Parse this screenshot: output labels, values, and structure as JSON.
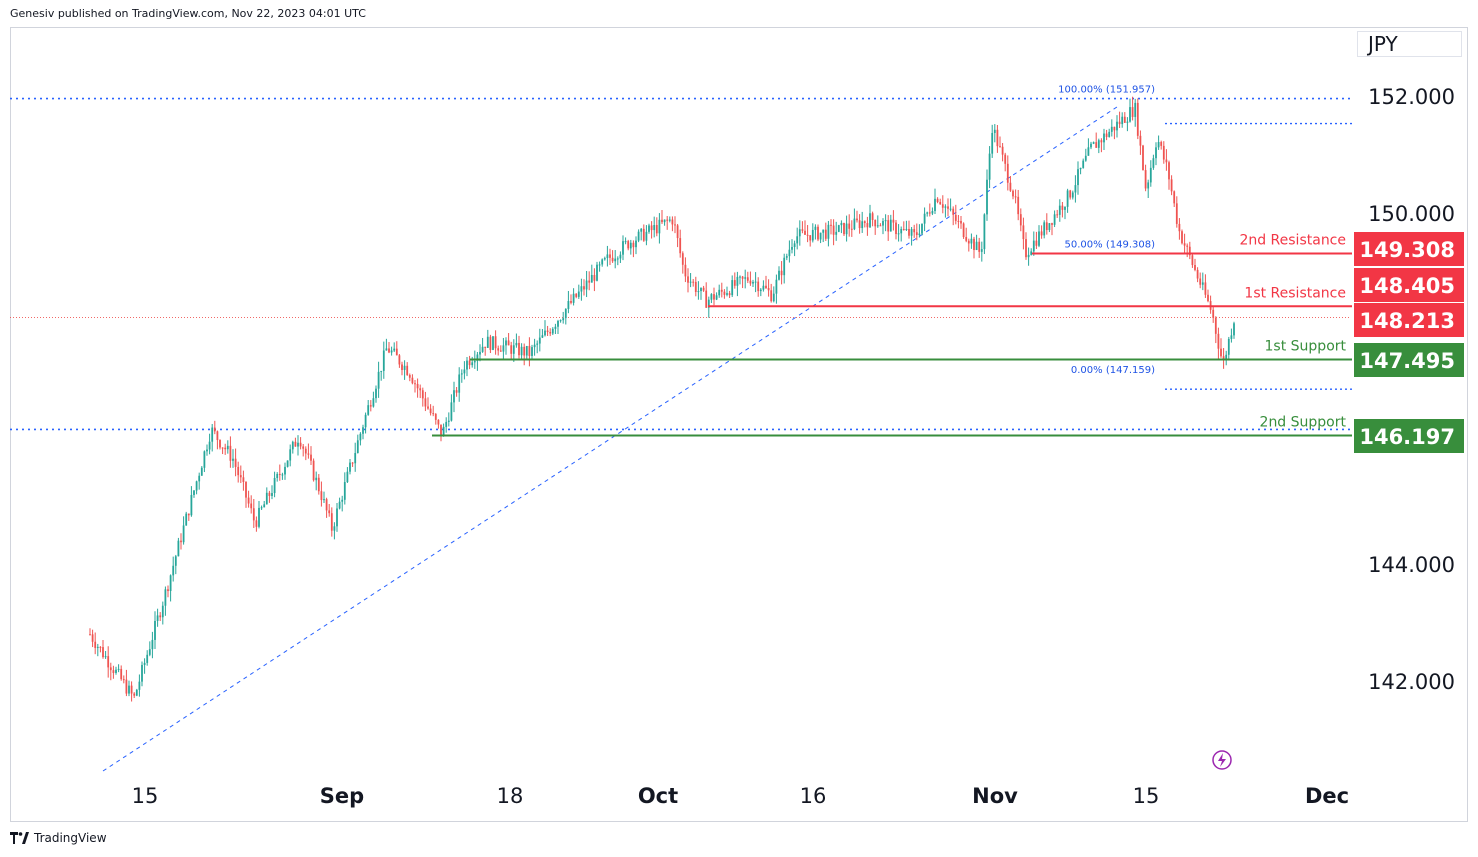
{
  "header": {
    "publisher_text": "Genesiv published on TradingView.com, Nov 22, 2023 04:01 UTC"
  },
  "footer": {
    "brand": "TradingView"
  },
  "currency": "JPY",
  "colors": {
    "bull": "#26a69a",
    "bear": "#ef5350",
    "resistance": "#f23645",
    "support": "#388e3c",
    "fib": "#2962ff",
    "fib_text": "#1e53e5",
    "axis_text": "#131722",
    "dotted": "#2962ff"
  },
  "chart_data": {
    "type": "candlestick",
    "symbol_currency": "JPY",
    "y_ticks": [
      142.0,
      144.0,
      150.0,
      152.0
    ],
    "y_tick_labels": [
      "142.000",
      "144.000",
      "150.000",
      "152.000"
    ],
    "x_ticks": [
      "15",
      "Sep",
      "18",
      "Oct",
      "16",
      "Nov",
      "15",
      "Dec"
    ],
    "price_labels": [
      {
        "value": 149.308,
        "text": "149.308",
        "kind": "resistance"
      },
      {
        "value": 148.405,
        "text": "148.405",
        "kind": "resistance"
      },
      {
        "value": 148.213,
        "text": "148.213",
        "kind": "resistance"
      },
      {
        "value": 147.495,
        "text": "147.495",
        "kind": "support"
      },
      {
        "value": 146.197,
        "text": "146.197",
        "kind": "support"
      }
    ],
    "levels": [
      {
        "name": "2nd Resistance",
        "value": 149.308,
        "kind": "resistance"
      },
      {
        "name": "1st Resistance",
        "value": 148.405,
        "kind": "resistance"
      },
      {
        "name": "1st Support",
        "value": 147.495,
        "kind": "support"
      },
      {
        "name": "2nd Support",
        "value": 146.197,
        "kind": "support"
      }
    ],
    "fib": [
      {
        "label": "100.00% (151.957)",
        "value": 151.957
      },
      {
        "label": "50.00% (149.308)",
        "value": 149.308
      },
      {
        "label": "0.00% (147.159)",
        "value": 147.159
      }
    ],
    "dotted_levels": [
      151.957,
      146.3
    ],
    "last_price": 148.213,
    "series_anchors": [
      {
        "date": "Aug 10",
        "close": 142.8
      },
      {
        "date": "Aug 14",
        "close": 141.7
      },
      {
        "date": "Aug 17",
        "close": 143.6
      },
      {
        "date": "Aug 21",
        "close": 146.3
      },
      {
        "date": "Aug 23",
        "close": 145.8
      },
      {
        "date": "Aug 25",
        "close": 144.7
      },
      {
        "date": "Aug 29",
        "close": 146.2
      },
      {
        "date": "Aug 31",
        "close": 145.2
      },
      {
        "date": "Sep 1",
        "close": 144.6
      },
      {
        "date": "Sep 4",
        "close": 146.5
      },
      {
        "date": "Sep 6",
        "close": 147.7
      },
      {
        "date": "Sep 8",
        "close": 147.3
      },
      {
        "date": "Sep 11",
        "close": 146.2
      },
      {
        "date": "Sep 13",
        "close": 147.4
      },
      {
        "date": "Sep 15",
        "close": 147.8
      },
      {
        "date": "Sep 19",
        "close": 147.6
      },
      {
        "date": "Sep 22",
        "close": 148.3
      },
      {
        "date": "Sep 26",
        "close": 149.2
      },
      {
        "date": "Sep 28",
        "close": 149.5
      },
      {
        "date": "Oct 2",
        "close": 149.9
      },
      {
        "date": "Oct 3",
        "close": 149.0
      },
      {
        "date": "Oct 5",
        "close": 148.5
      },
      {
        "date": "Oct 9",
        "close": 148.9
      },
      {
        "date": "Oct 11",
        "close": 148.6
      },
      {
        "date": "Oct 13",
        "close": 149.6
      },
      {
        "date": "Oct 17",
        "close": 149.7
      },
      {
        "date": "Oct 20",
        "close": 149.9
      },
      {
        "date": "Oct 24",
        "close": 149.6
      },
      {
        "date": "Oct 26",
        "close": 150.3
      },
      {
        "date": "Oct 30",
        "close": 149.3
      },
      {
        "date": "Oct 31",
        "close": 151.5
      },
      {
        "date": "Nov 2",
        "close": 150.3
      },
      {
        "date": "Nov 3",
        "close": 149.3
      },
      {
        "date": "Nov 7",
        "close": 150.3
      },
      {
        "date": "Nov 9",
        "close": 151.1
      },
      {
        "date": "Nov 13",
        "close": 151.8
      },
      {
        "date": "Nov 14",
        "close": 150.4
      },
      {
        "date": "Nov 15",
        "close": 151.3
      },
      {
        "date": "Nov 16",
        "close": 150.7
      },
      {
        "date": "Nov 17",
        "close": 149.7
      },
      {
        "date": "Nov 20",
        "close": 148.3
      },
      {
        "date": "Nov 21",
        "close": 147.4
      },
      {
        "date": "Nov 22",
        "close": 148.2
      }
    ]
  }
}
